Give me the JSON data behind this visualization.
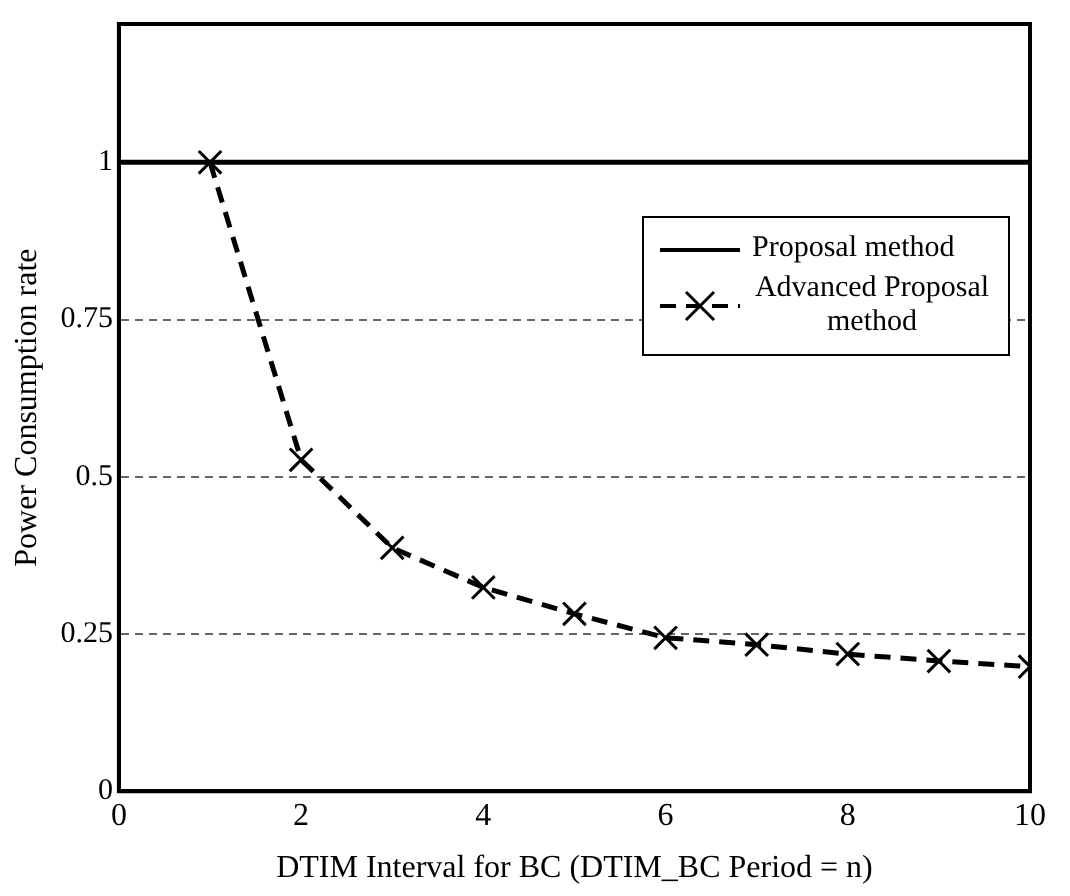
{
  "chart_data": {
    "type": "line",
    "xlabel": "DTIM Interval for BC (DTIM_BC Period = n)",
    "ylabel": "Power Consumption rate",
    "xlim": [
      0,
      10
    ],
    "xticks": [
      0,
      2,
      4,
      6,
      8,
      10
    ],
    "ylim": [
      0,
      1.22
    ],
    "yticks": [
      0,
      0.25,
      0.5,
      0.75,
      1
    ],
    "grid": "y",
    "legend": "top right",
    "series": [
      {
        "name": "Proposal method",
        "color": "#000000",
        "x": [
          0,
          10
        ],
        "values": [
          1,
          1
        ],
        "marker": "none",
        "line_style": "solid"
      },
      {
        "name": "Advanced Proposal method",
        "color": "#000000",
        "x": [
          1,
          2,
          3,
          4,
          5,
          6,
          7,
          8,
          9,
          10
        ],
        "values": [
          1,
          0.527,
          0.387,
          0.324,
          0.282,
          0.244,
          0.233,
          0.218,
          0.207,
          0.198
        ],
        "marker": "cross",
        "line_style": "dashed"
      }
    ]
  }
}
